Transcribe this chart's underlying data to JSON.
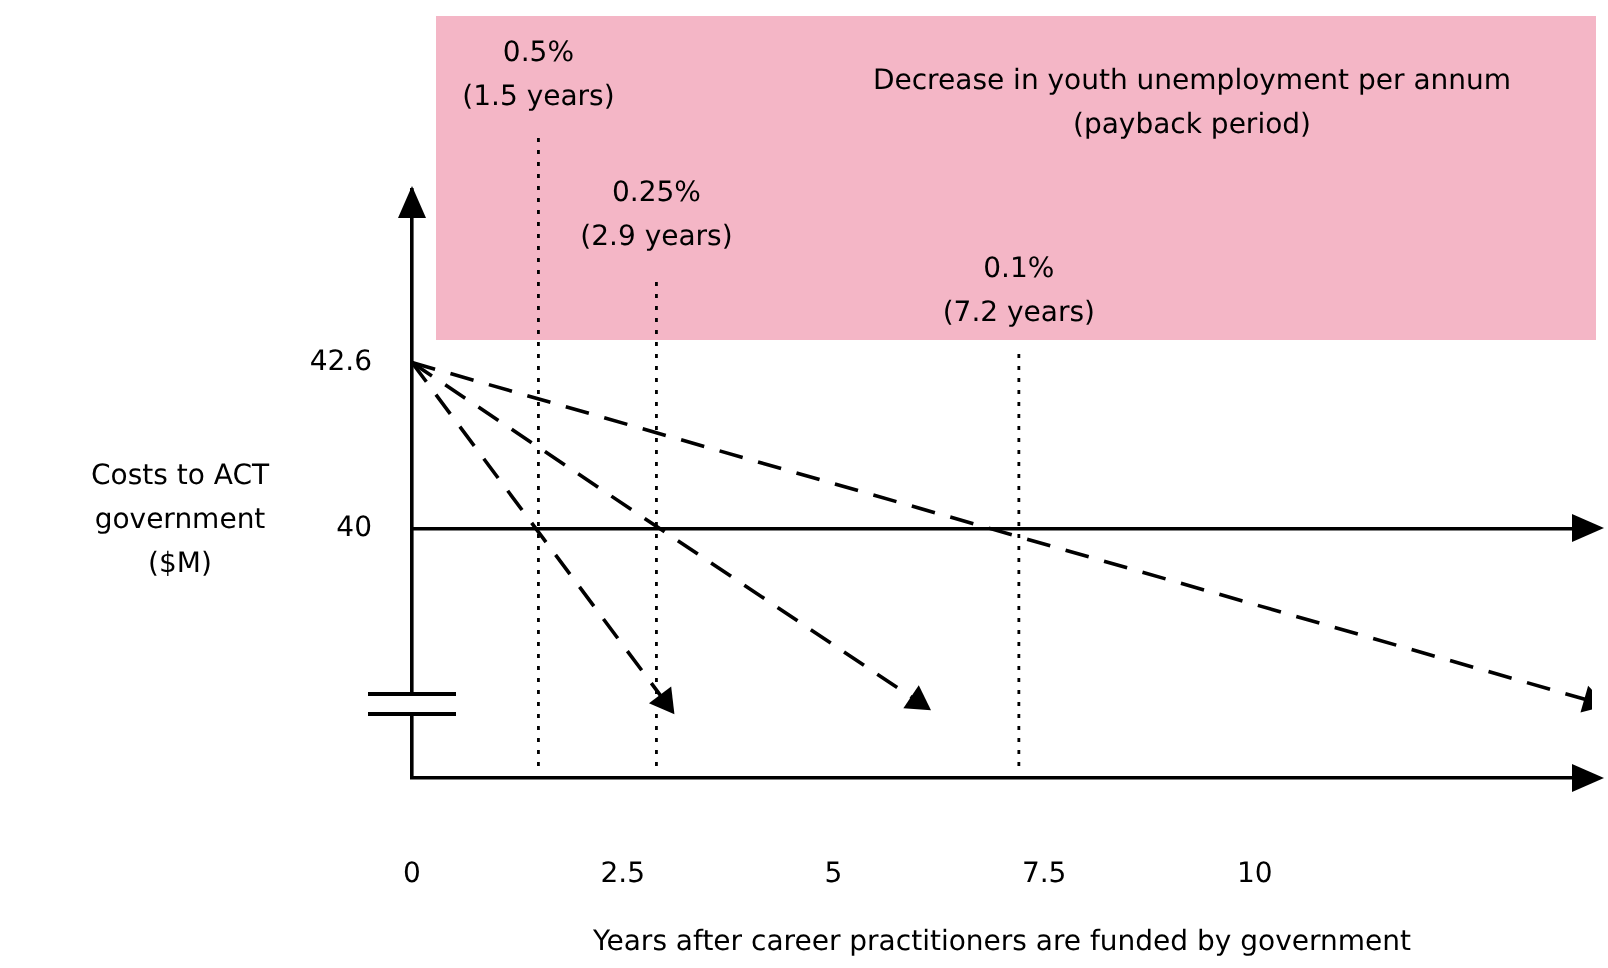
{
  "chart_data": {
    "type": "line",
    "xlabel": "Years after career practitioners are funded by government",
    "ylabel": "Costs to ACT government ($M)",
    "xlim": [
      0,
      14
    ],
    "xticks": [
      0,
      2.5,
      5,
      7.5,
      10
    ],
    "ylim": [
      36.1,
      45.3
    ],
    "yticks": [
      42.6,
      40
    ],
    "grid": false,
    "legend": false,
    "marker": "triangle",
    "line_style": "dashed",
    "series": [
      {
        "color": "#000000",
        "x": [
          0,
          3
        ],
        "values": [
          42.6,
          37.3
        ]
      },
      {
        "color": "#000000",
        "x": [
          0,
          6
        ],
        "values": [
          42.6,
          37.3
        ]
      },
      {
        "color": "#000000",
        "x": [
          0,
          14
        ],
        "values": [
          42.6,
          37.3
        ]
      }
    ],
    "ref_lines": [
      {
        "axis": "y",
        "value": 40,
        "color": "#000000",
        "line_style": "solid"
      },
      {
        "axis": "x",
        "value": 1.5,
        "label": "0.5%\n(1.5 years)",
        "color": "#000000",
        "line_style": "dotted"
      },
      {
        "axis": "x",
        "value": 2.9,
        "label": "0.25%\n(2.9 years)",
        "color": "#000000",
        "line_style": "dotted"
      },
      {
        "axis": "x",
        "value": 7.2,
        "label": "0.1%\n(7.2 years)",
        "color": "#000000",
        "line_style": "dotted"
      }
    ],
    "annotations": [
      "Decrease in youth unemployment per annum\n(payback period)"
    ]
  }
}
